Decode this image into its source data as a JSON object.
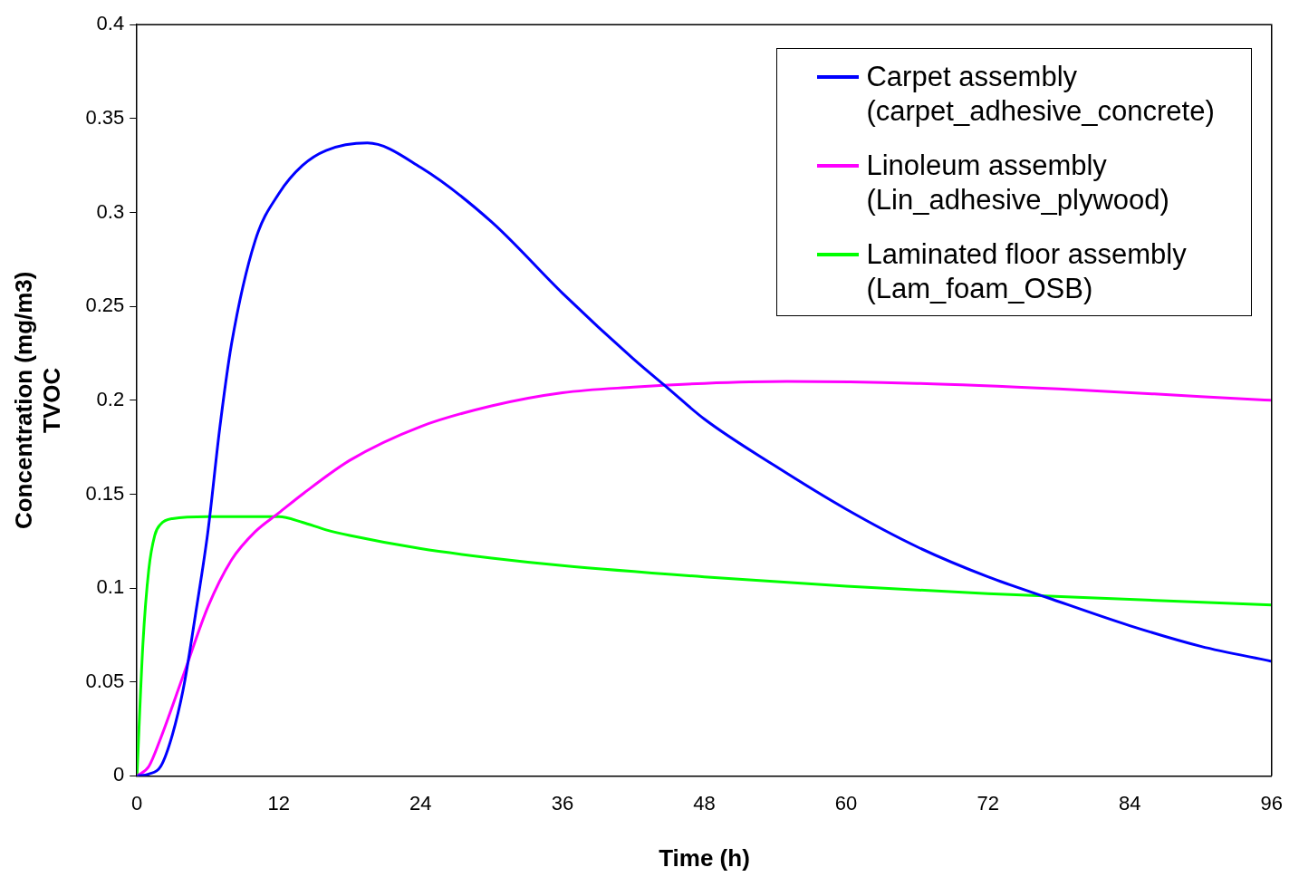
{
  "chart_data": {
    "type": "line",
    "xlabel": "Time (h)",
    "ylabel": "Concentration (mg/m3)\nTVOC",
    "xlim": [
      0,
      96
    ],
    "xticks": [
      0,
      12,
      24,
      36,
      48,
      60,
      72,
      84,
      96
    ],
    "ylim": [
      0,
      0.4
    ],
    "yticks": [
      0,
      0.05,
      0.1,
      0.15,
      0.2,
      0.25,
      0.3,
      0.35,
      0.4
    ],
    "grid": false,
    "legend": "top right",
    "marker": "none",
    "line_style": "solid",
    "series": [
      {
        "name": "Carpet assembly\n(carpet_adhesive_concrete)",
        "color": "#0000ff",
        "x": [
          0,
          1,
          2,
          3,
          4,
          5,
          6,
          7,
          8,
          10,
          12,
          14,
          16,
          19.5,
          24,
          30,
          36,
          42,
          45,
          48,
          54,
          60,
          66,
          72,
          77,
          84,
          90,
          96
        ],
        "values": [
          0,
          0.001,
          0.005,
          0.022,
          0.049,
          0.088,
          0.13,
          0.185,
          0.23,
          0.285,
          0.31,
          0.325,
          0.333,
          0.337,
          0.324,
          0.295,
          0.257,
          0.222,
          0.206,
          0.19,
          0.165,
          0.142,
          0.122,
          0.106,
          0.095,
          0.08,
          0.069,
          0.061
        ]
      },
      {
        "name": "Linoleum assembly\n(Lin_adhesive_plywood)",
        "color": "#ff00ff",
        "x": [
          0,
          1,
          2,
          4,
          6,
          8,
          10,
          12,
          14,
          18,
          24,
          30,
          36,
          42,
          48,
          55,
          66,
          78,
          90,
          96
        ],
        "values": [
          0,
          0.005,
          0.02,
          0.055,
          0.09,
          0.115,
          0.13,
          0.14,
          0.15,
          0.168,
          0.186,
          0.197,
          0.204,
          0.207,
          0.209,
          0.21,
          0.209,
          0.206,
          0.202,
          0.2
        ]
      },
      {
        "name": "Laminated floor assembly\n(Lam_foam_OSB)",
        "color": "#00ff00",
        "x": [
          0,
          0.5,
          1,
          1.5,
          2,
          3,
          6,
          10,
          12,
          14,
          16,
          18,
          24,
          30,
          36,
          48,
          60,
          72,
          84,
          96
        ],
        "values": [
          0,
          0.07,
          0.11,
          0.128,
          0.134,
          0.137,
          0.138,
          0.138,
          0.138,
          0.135,
          0.131,
          0.128,
          0.121,
          0.116,
          0.112,
          0.106,
          0.101,
          0.097,
          0.094,
          0.091
        ]
      }
    ]
  }
}
